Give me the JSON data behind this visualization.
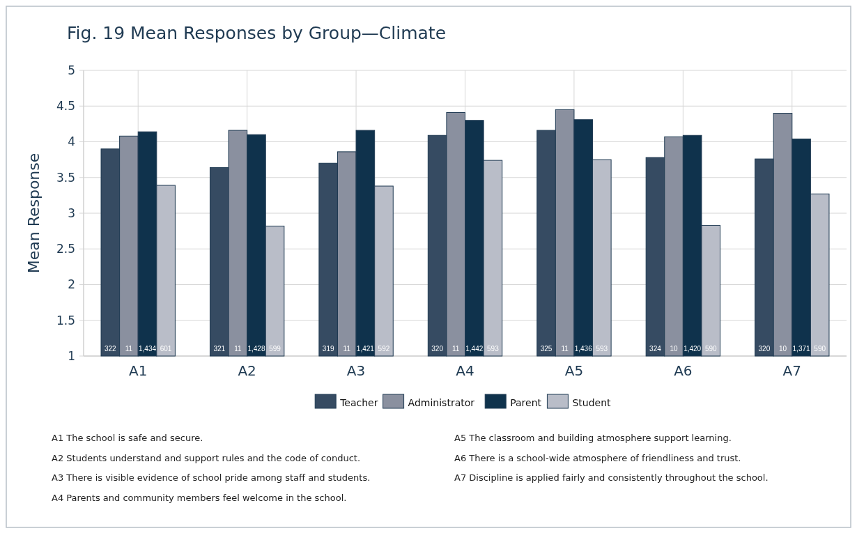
{
  "chart_data": {
    "type": "bar",
    "title": "Fig. 19  Mean Responses by Group—Climate",
    "ylabel": "Mean Response",
    "categories": [
      "A1",
      "A2",
      "A3",
      "A4",
      "A5",
      "A6",
      "A7"
    ],
    "series": [
      {
        "name": "Teacher",
        "color": "#364b62",
        "values": [
          3.9,
          3.64,
          3.7,
          4.09,
          4.16,
          3.78,
          3.76
        ]
      },
      {
        "name": "Administrator",
        "color": "#8a909f",
        "values": [
          4.08,
          4.16,
          3.86,
          4.41,
          4.45,
          4.07,
          4.4
        ]
      },
      {
        "name": "Parent",
        "color": "#0f324c",
        "values": [
          4.14,
          4.1,
          4.16,
          4.3,
          4.31,
          4.09,
          4.04
        ]
      },
      {
        "name": "Student",
        "color": "#b9bdc8",
        "values": [
          3.39,
          2.82,
          3.38,
          3.74,
          3.75,
          2.83,
          3.27
        ]
      }
    ],
    "ylim": [
      1,
      5
    ],
    "yticks": [
      1,
      1.5,
      2,
      2.5,
      3,
      3.5,
      4,
      4.5,
      5
    ],
    "grid": true,
    "legend": "bottom",
    "annotations": [
      "322",
      "11",
      "1,434",
      "601",
      "321",
      "11",
      "1,428",
      "599",
      "319",
      "11",
      "1,421",
      "592",
      "320",
      "11",
      "1,442",
      "593",
      "325",
      "11",
      "1,436",
      "593",
      "324",
      "10",
      "1,420",
      "590",
      "320",
      "10",
      "1,371",
      "590",
      "A1 The school is safe and secure.",
      "A2 Students understand and support rules and the code of conduct.",
      "A3 There is visible evidence of school pride among staff and students.",
      "A4 Parents and community members feel welcome in the school.",
      "A5 The classroom and building atmosphere support learning.",
      "A6 There is a school-wide atmosphere of friendliness and trust.",
      "A7 Discipline is applied fairly and consistently throughout the school."
    ]
  }
}
